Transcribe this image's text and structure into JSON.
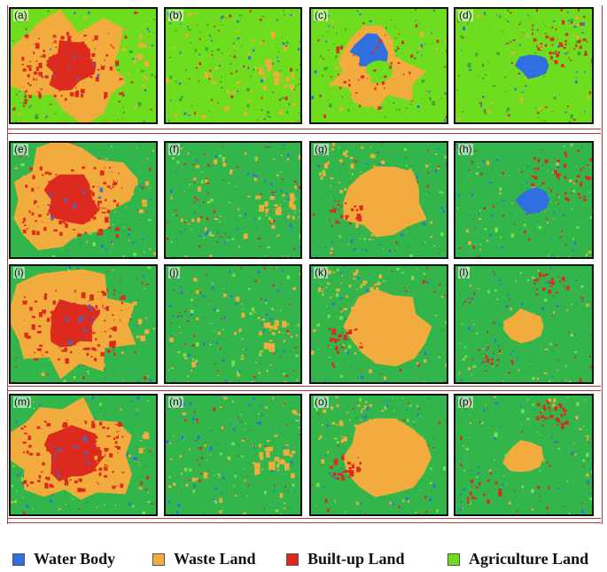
{
  "colors": {
    "water": "#2f6fe0",
    "waste": "#f2ac3d",
    "builtup": "#dd2a1f",
    "agriculture_light": "#6ddd1e",
    "agriculture_dark": "#32b54a"
  },
  "panels": [
    {
      "label": "(a)",
      "theme": "light",
      "scene": "city"
    },
    {
      "label": "(b)",
      "theme": "light",
      "scene": "sparse"
    },
    {
      "label": "(c)",
      "theme": "light",
      "scene": "lake-waste"
    },
    {
      "label": "(d)",
      "theme": "light",
      "scene": "pond"
    },
    {
      "label": "(e)",
      "theme": "dark",
      "scene": "city"
    },
    {
      "label": "(f)",
      "theme": "dark",
      "scene": "sparse"
    },
    {
      "label": "(g)",
      "theme": "dark",
      "scene": "waste-blob"
    },
    {
      "label": "(h)",
      "theme": "dark",
      "scene": "pond"
    },
    {
      "label": "(i)",
      "theme": "dark",
      "scene": "city"
    },
    {
      "label": "(j)",
      "theme": "dark",
      "scene": "sparse"
    },
    {
      "label": "(k)",
      "theme": "dark",
      "scene": "waste-blob"
    },
    {
      "label": "(l)",
      "theme": "dark",
      "scene": "small-waste"
    },
    {
      "label": "(m)",
      "theme": "dark",
      "scene": "city"
    },
    {
      "label": "(n)",
      "theme": "dark",
      "scene": "sparse"
    },
    {
      "label": "(o)",
      "theme": "dark",
      "scene": "waste-blob"
    },
    {
      "label": "(p)",
      "theme": "dark",
      "scene": "small-waste"
    }
  ],
  "legend": [
    {
      "label": "Water Body",
      "color": "#2f6fe0",
      "icon": "square-swatch"
    },
    {
      "label": "Waste Land",
      "color": "#f2ac3d",
      "icon": "square-swatch"
    },
    {
      "label": "Built-up Land",
      "color": "#dd2a1f",
      "icon": "square-swatch"
    },
    {
      "label": "Agriculture Land",
      "color": "#6ddd1e",
      "icon": "square-swatch"
    }
  ]
}
